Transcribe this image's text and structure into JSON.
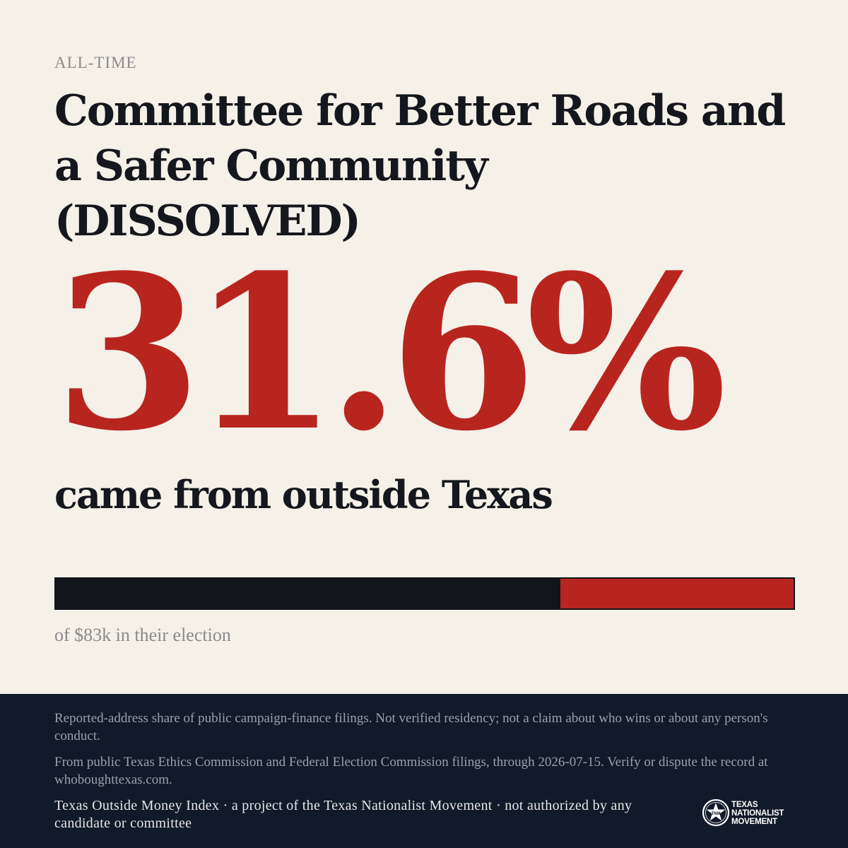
{
  "period_label": "ALL-TIME",
  "committee_name": "Committee for Better Roads and a Safer Community (DISSOLVED)",
  "headline_value": "31.6%",
  "headline_caption": "came from outside Texas",
  "share_bar": {
    "outside_fraction": 0.316,
    "inside_color": "#12151b",
    "outside_color": "#b8251f"
  },
  "total_text": "of $83k in their election",
  "footer": {
    "note_1": "Reported-address share of public campaign-finance filings. Not verified residency; not a claim about who wins or about any person's conduct.",
    "note_2": "From public Texas Ethics Commission and Federal Election Commission filings, through 2026-07-15. Verify or dispute the record at whoboughttexas.com.",
    "attribution": "Texas Outside Money Index · a project of the Texas Nationalist Movement · not authorized by any candidate or committee",
    "logo": {
      "icon": "star-seal-icon",
      "line_1": "TEXAS",
      "line_2": "NATIONALIST",
      "line_3": "MOVEMENT"
    }
  },
  "colors": {
    "background": "#f5f0e8",
    "accent": "#b8251f",
    "ink": "#14171d",
    "footer_bg": "#111a28"
  }
}
